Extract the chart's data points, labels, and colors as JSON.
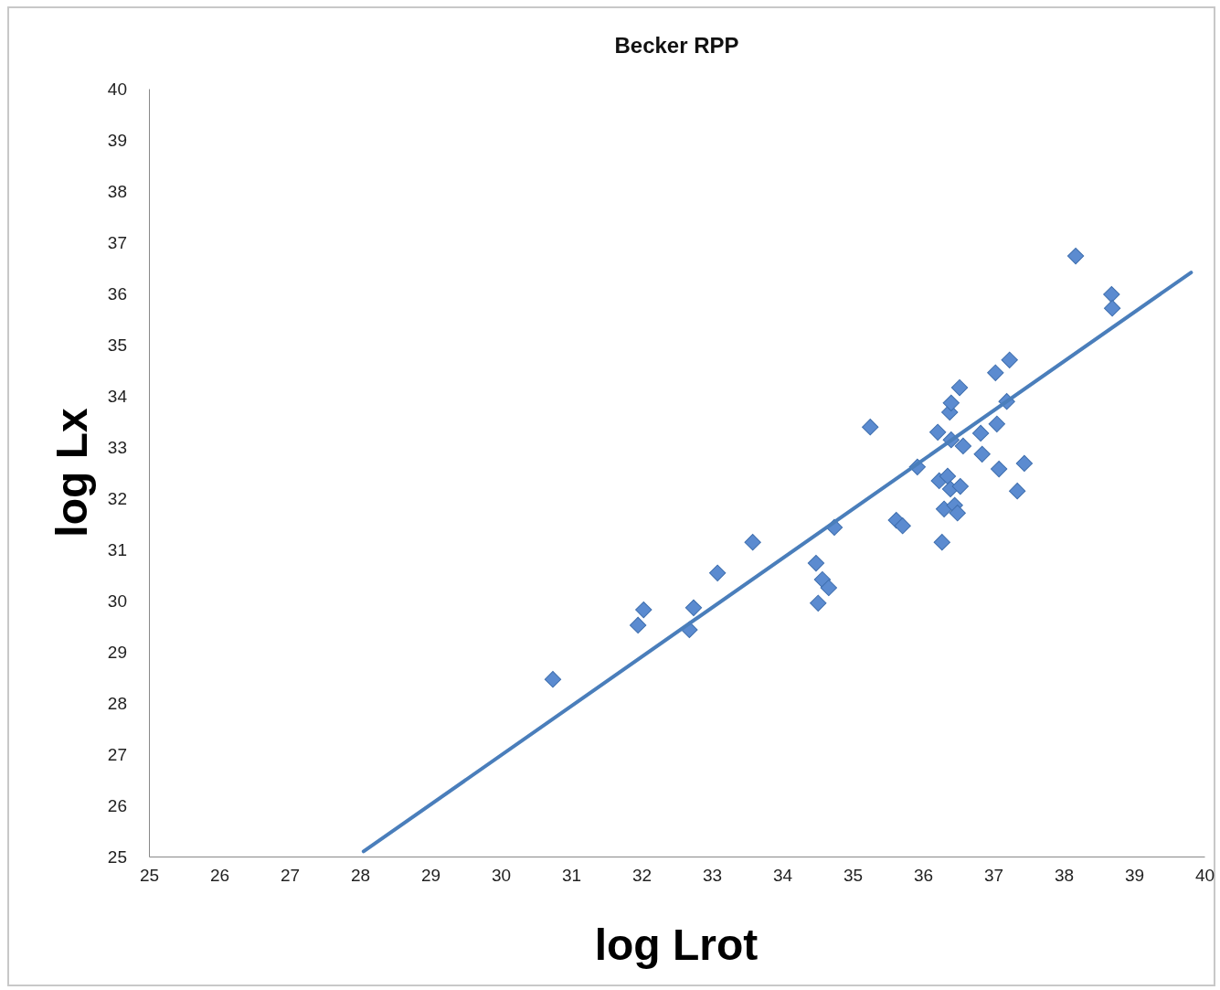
{
  "chart_data": {
    "type": "scatter",
    "title": "Becker RPP",
    "xlabel": "log Lrot",
    "ylabel": "log Lx",
    "marker": "diamond",
    "grid": false,
    "xlim": [
      25,
      40
    ],
    "xticks": [
      25,
      26,
      27,
      28,
      29,
      30,
      31,
      32,
      33,
      34,
      35,
      36,
      37,
      38,
      39,
      40
    ],
    "ylim": [
      25,
      40
    ],
    "yticks": [
      25,
      26,
      27,
      28,
      29,
      30,
      31,
      32,
      33,
      34,
      35,
      36,
      37,
      38,
      39,
      40
    ],
    "series": [
      {
        "color": "#5b8bd0",
        "x": [
          30.74,
          31.95,
          32.03,
          32.68,
          32.74,
          33.08,
          33.58,
          34.48,
          34.57,
          34.66,
          34.51,
          34.74,
          35.25,
          35.62,
          35.71,
          35.92,
          36.21,
          36.23,
          36.27,
          36.3,
          36.35,
          36.39,
          36.38,
          36.4,
          36.4,
          36.45,
          36.49,
          36.52,
          36.53,
          36.57,
          36.82,
          36.84,
          37.03,
          37.05,
          37.08,
          37.19,
          37.23,
          37.34,
          37.44,
          38.17,
          38.68,
          38.69
        ],
        "values": [
          28.46,
          29.52,
          29.82,
          29.43,
          29.86,
          30.54,
          31.14,
          30.73,
          30.41,
          30.25,
          29.95,
          31.43,
          33.39,
          31.57,
          31.46,
          32.61,
          33.29,
          32.34,
          31.14,
          31.79,
          32.43,
          32.18,
          33.68,
          33.86,
          33.14,
          31.86,
          31.71,
          34.16,
          32.23,
          33.02,
          33.27,
          32.86,
          34.45,
          33.45,
          32.57,
          33.89,
          34.7,
          32.14,
          32.68,
          36.73,
          35.98,
          35.71
        ]
      },
      {
        "type": "line",
        "color": "#4a7ebb",
        "marker": "none",
        "x": [
          28.05,
          39.81
        ],
        "values": [
          25.1,
          36.41
        ]
      }
    ]
  }
}
